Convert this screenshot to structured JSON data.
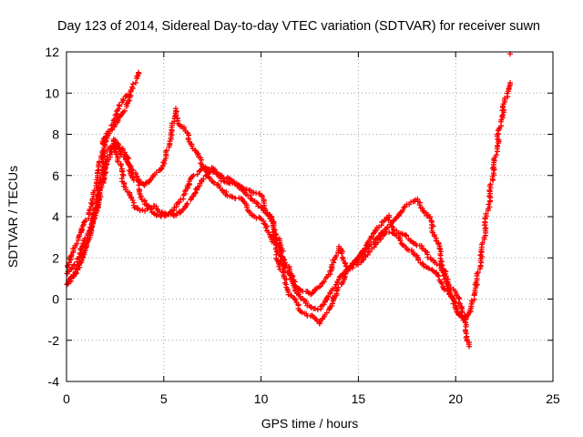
{
  "chart_data": {
    "type": "scatter",
    "title": "Day 123 of 2014, Sidereal Day-to-day VTEC variation (SDTVAR) for receiver suwn",
    "xlabel": "GPS time / hours",
    "ylabel": "SDTVAR / TECUs",
    "xlim": [
      0,
      25
    ],
    "ylim": [
      -4,
      12
    ],
    "xticks": [
      "0",
      "5",
      "10",
      "15",
      "20",
      "25"
    ],
    "yticks": [
      "-4",
      "-2",
      "0",
      "2",
      "4",
      "6",
      "8",
      "10",
      "12"
    ],
    "grid": true,
    "marker": "+",
    "color": "#ff0000",
    "series": [
      {
        "x": [
          0.0,
          0.3,
          0.6,
          1.0,
          1.4,
          1.8,
          2.2,
          2.6,
          3.0,
          3.3,
          3.7
        ],
        "y": [
          1.5,
          2.2,
          3.0,
          3.8,
          5.0,
          7.0,
          8.0,
          8.6,
          9.2,
          10.0,
          11.0
        ]
      },
      {
        "x": [
          1.8,
          2.2,
          2.5,
          2.7,
          2.9,
          3.1
        ],
        "y": [
          7.5,
          8.2,
          8.8,
          9.3,
          9.7,
          9.9
        ]
      },
      {
        "x": [
          0.0,
          0.3,
          0.6,
          1.0,
          1.4,
          1.8,
          2.2,
          2.6,
          3.0,
          3.5,
          4.0,
          4.5,
          5.0,
          5.4,
          5.6,
          5.8,
          6.2,
          6.6,
          7.0,
          7.5,
          8.0,
          8.5,
          9.0,
          9.5,
          10.0,
          10.5,
          11.0,
          11.5,
          12.0,
          12.5,
          13.0,
          13.5,
          14.0,
          14.5,
          15.0,
          15.5,
          16.0,
          16.5,
          17.0,
          17.5,
          18.0,
          18.5,
          19.0,
          19.5,
          20.0,
          20.3,
          20.5,
          20.8,
          21.0,
          21.3,
          21.6,
          21.9,
          22.2,
          22.5,
          22.8
        ],
        "y": [
          0.7,
          1.0,
          1.5,
          2.5,
          3.8,
          5.5,
          7.0,
          7.5,
          6.8,
          5.8,
          5.5,
          6.0,
          6.5,
          8.0,
          9.2,
          8.5,
          8.0,
          7.2,
          6.5,
          6.3,
          5.8,
          5.6,
          5.4,
          5.3,
          5.0,
          3.8,
          2.0,
          1.0,
          0.5,
          0.2,
          0.6,
          1.2,
          2.5,
          1.5,
          2.0,
          2.8,
          3.5,
          4.0,
          3.2,
          3.0,
          2.7,
          2.2,
          1.8,
          1.0,
          0.2,
          -0.3,
          -1.0,
          -0.5,
          0.5,
          2.0,
          4.0,
          6.0,
          8.0,
          9.5,
          10.5
        ]
      },
      {
        "x": [
          0.0,
          0.5,
          1.0,
          1.5,
          2.0,
          2.5,
          3.0,
          3.5,
          4.0,
          4.5,
          5.0,
          5.5,
          6.0,
          6.5,
          7.0,
          7.5,
          8.0,
          8.5,
          9.0,
          9.5,
          10.0,
          10.5,
          11.0,
          11.5,
          12.0,
          12.5,
          13.0,
          13.5,
          14.0,
          14.5,
          15.0,
          15.5,
          16.0,
          16.5,
          17.0,
          17.5,
          18.0,
          18.5,
          19.0,
          19.5,
          20.0,
          20.5
        ],
        "y": [
          1.2,
          1.8,
          3.0,
          4.0,
          6.5,
          7.8,
          7.0,
          6.2,
          4.6,
          4.2,
          4.0,
          4.3,
          5.0,
          6.0,
          6.3,
          5.8,
          5.2,
          5.0,
          4.8,
          4.2,
          3.8,
          3.2,
          1.5,
          0.2,
          -0.5,
          -0.8,
          -1.2,
          -0.5,
          0.5,
          1.5,
          2.0,
          2.5,
          3.0,
          3.5,
          4.0,
          4.6,
          4.8,
          4.2,
          3.0,
          1.0,
          -0.5,
          -1.0
        ]
      },
      {
        "x": [
          0.0,
          0.5,
          1.0,
          1.5,
          2.0,
          2.5,
          3.0,
          3.5,
          4.0,
          4.5,
          5.0,
          5.5,
          6.0,
          6.5,
          7.0,
          7.5,
          8.0,
          8.5,
          9.0,
          9.5,
          10.0,
          10.5,
          11.0,
          11.5,
          12.0,
          12.5,
          13.0,
          13.5,
          14.0,
          14.5,
          15.0,
          15.5,
          16.0,
          16.5,
          17.0,
          17.5,
          18.0,
          18.5,
          19.0,
          19.5,
          20.0,
          20.5,
          20.7
        ],
        "y": [
          0.8,
          1.3,
          2.5,
          4.5,
          7.2,
          7.5,
          5.5,
          4.5,
          4.3,
          4.5,
          4.2,
          4.0,
          4.3,
          5.0,
          5.8,
          6.3,
          6.0,
          5.7,
          5.4,
          4.8,
          4.5,
          4.0,
          2.5,
          1.2,
          0.0,
          -0.3,
          -0.5,
          0.2,
          1.0,
          1.5,
          1.7,
          2.2,
          2.8,
          3.3,
          3.0,
          2.5,
          2.0,
          1.6,
          1.2,
          0.5,
          -0.3,
          -1.3,
          -2.3
        ]
      },
      {
        "x": [
          22.8
        ],
        "y": [
          11.9
        ]
      }
    ]
  }
}
